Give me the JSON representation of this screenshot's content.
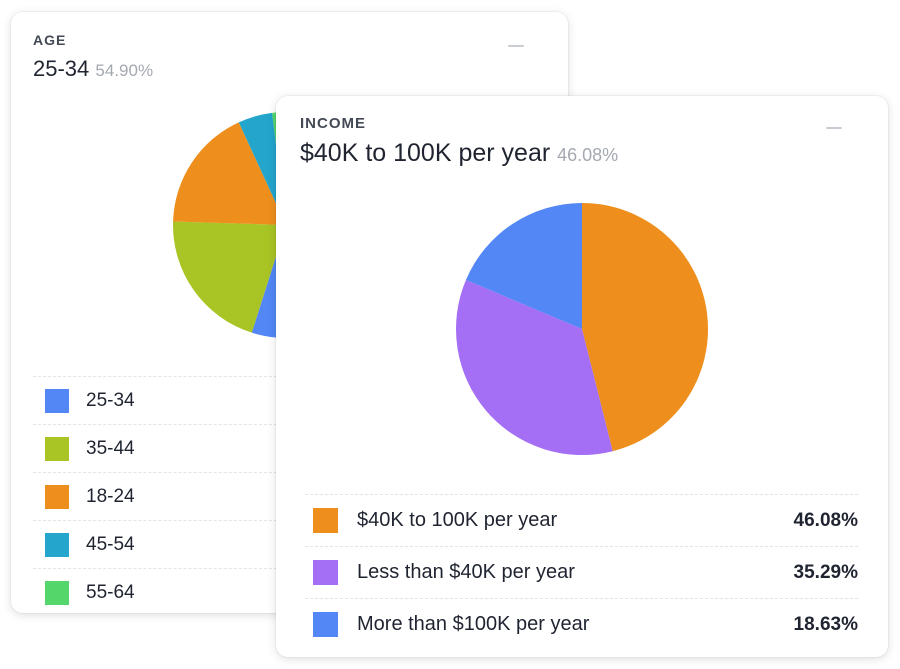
{
  "age": {
    "eyebrow": "AGE",
    "headline": "25-34",
    "headline_pct": "54.90%"
  },
  "income": {
    "eyebrow": "INCOME",
    "headline": "$40K to 100K per year",
    "headline_pct": "46.08%"
  },
  "chart_data": [
    {
      "type": "pie",
      "title": "AGE",
      "categories": [
        "25-34",
        "35-44",
        "18-24",
        "45-54",
        "55-64"
      ],
      "values": [
        54.9,
        20.59,
        17.65,
        4.9,
        1.96
      ],
      "colors": [
        "#5287f5",
        "#a9c425",
        "#ee8f1d",
        "#23a5cc",
        "#55d66b"
      ],
      "value_labels": [
        "",
        "",
        "",
        "",
        ""
      ],
      "legend": "bottom"
    },
    {
      "type": "pie",
      "title": "INCOME",
      "categories": [
        "$40K to 100K per year",
        "Less than $40K per year",
        "More than $100K per year"
      ],
      "values": [
        46.08,
        35.29,
        18.63
      ],
      "colors": [
        "#ee8f1d",
        "#a46ff4",
        "#5287f5"
      ],
      "value_labels": [
        "46.08%",
        "35.29%",
        "18.63%"
      ],
      "legend": "bottom"
    }
  ]
}
